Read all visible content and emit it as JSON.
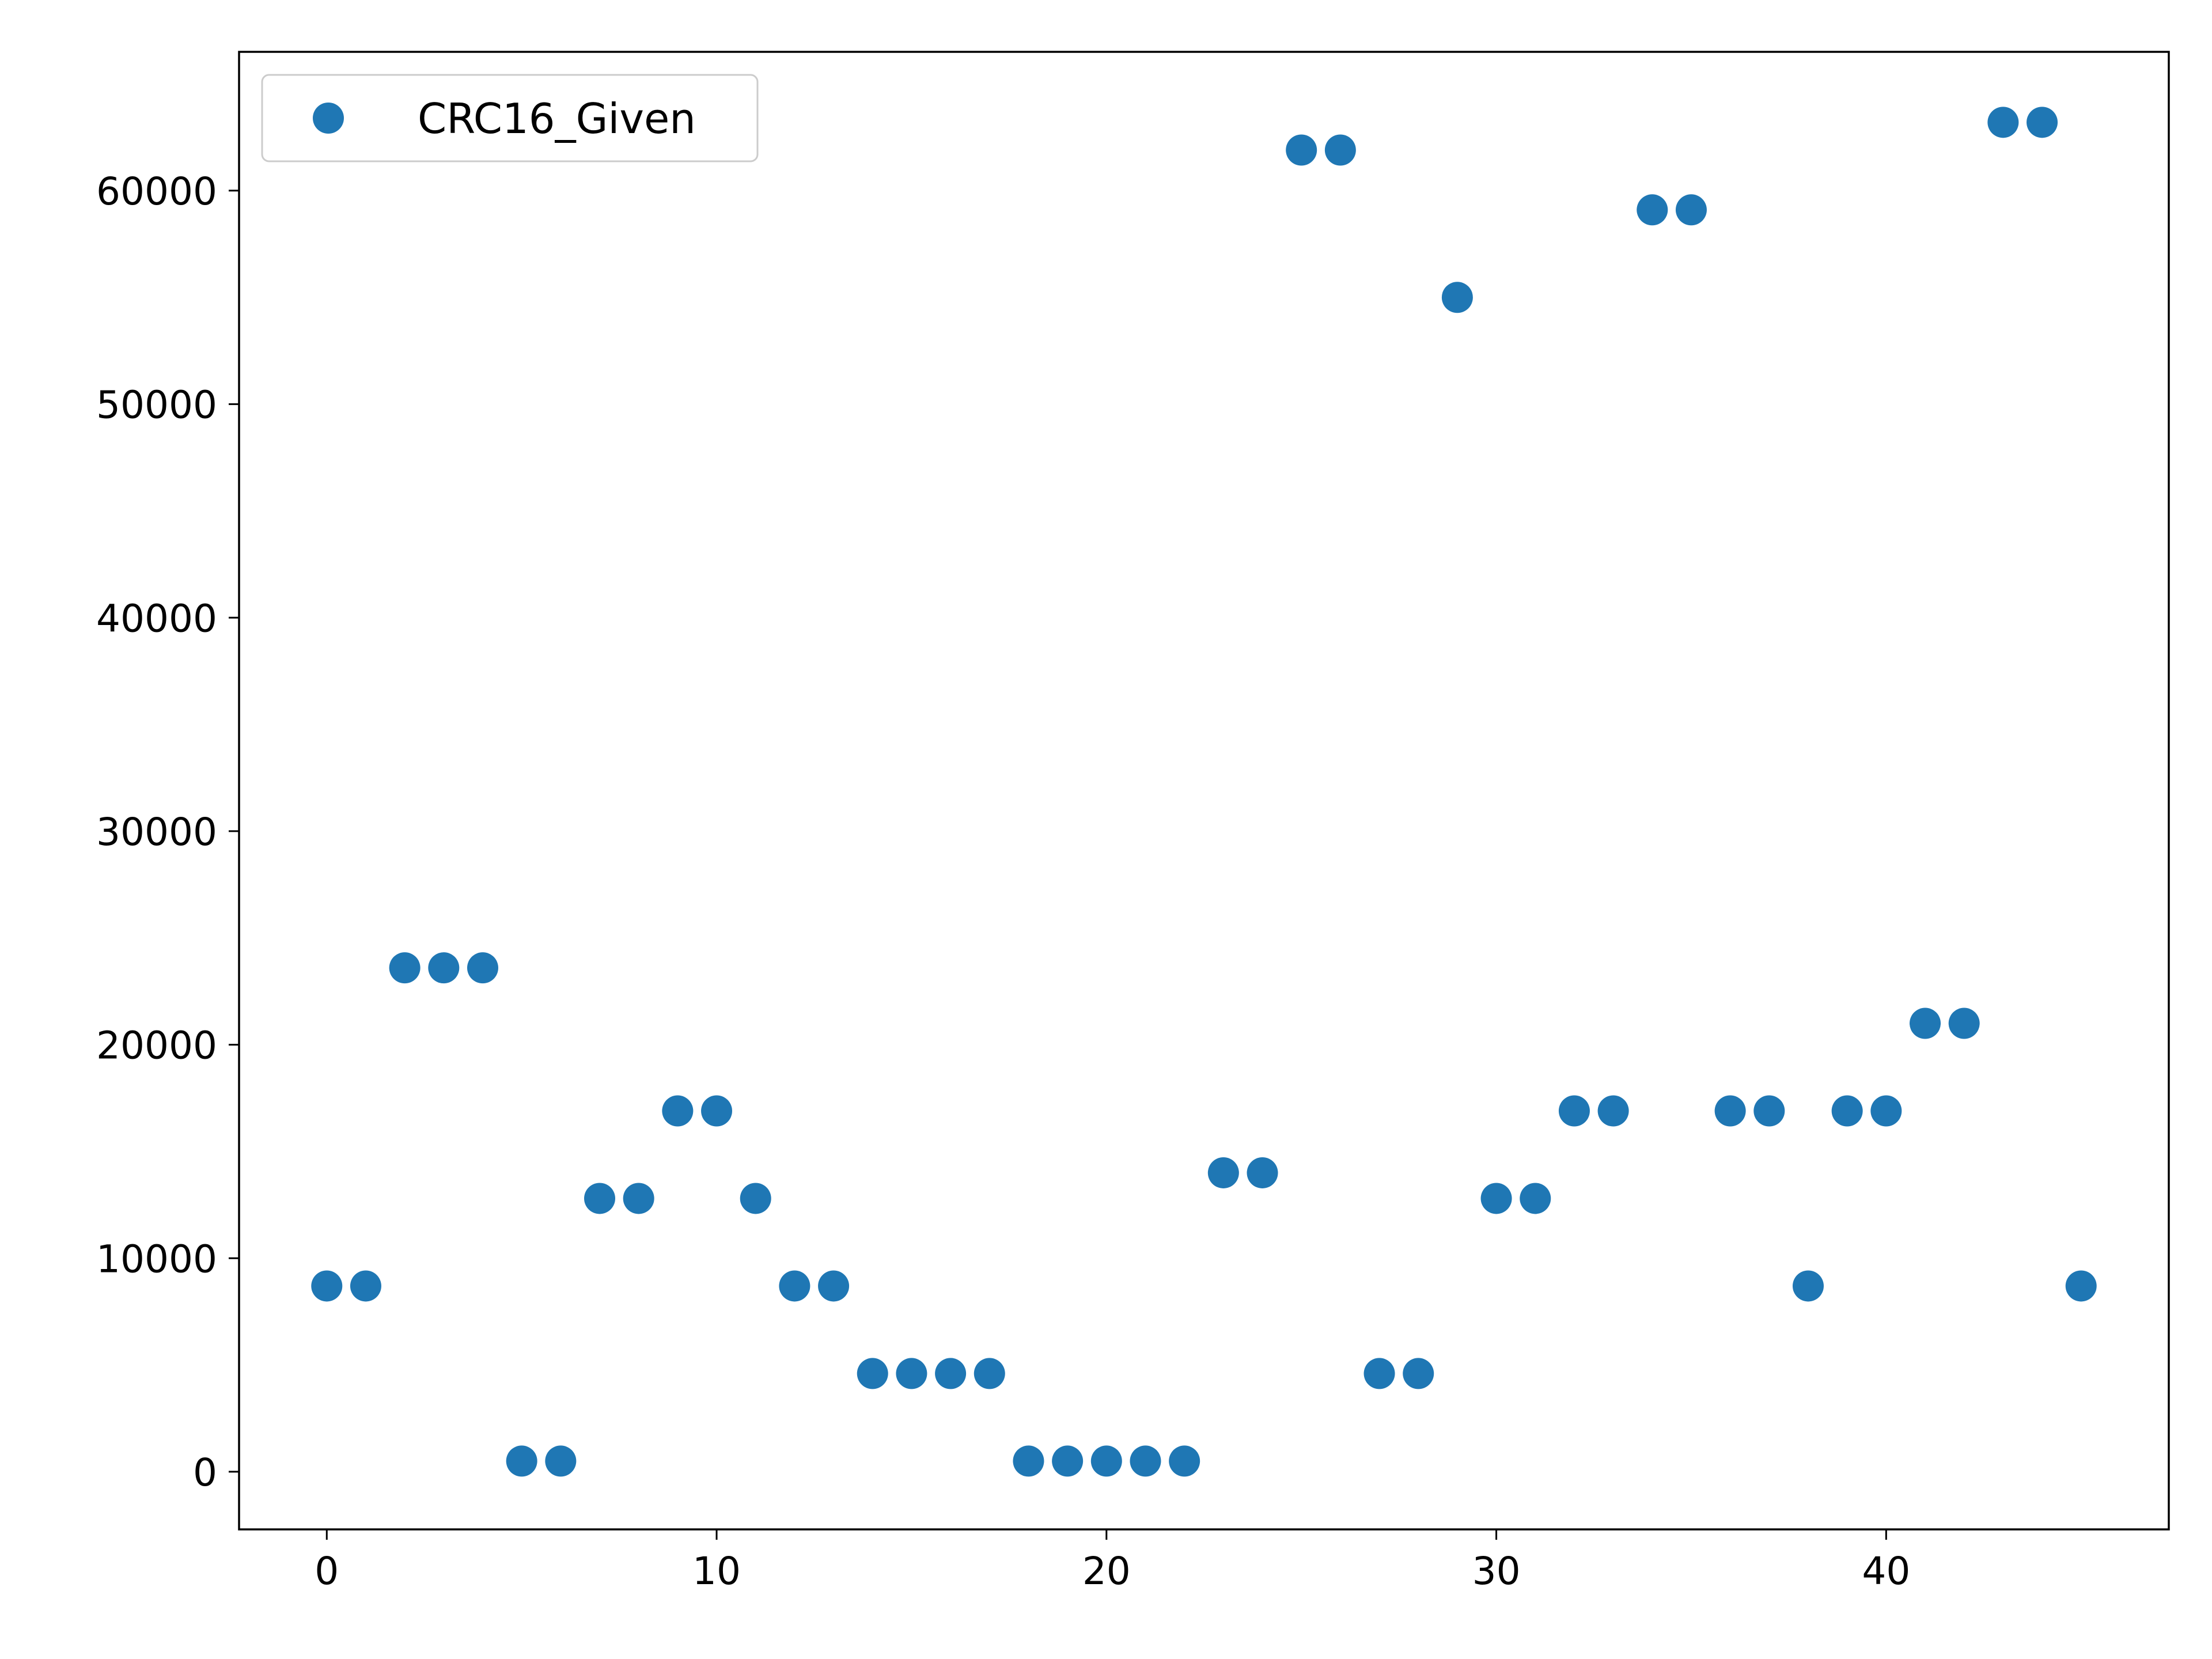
{
  "chart_data": {
    "type": "scatter",
    "title": "",
    "xlabel": "",
    "ylabel": "",
    "xlim": [
      -2.25,
      47.25
    ],
    "ylim": [
      -2700,
      66500
    ],
    "xticks": [
      0,
      10,
      20,
      30,
      40
    ],
    "yticks": [
      0,
      10000,
      20000,
      30000,
      40000,
      50000,
      60000
    ],
    "xtick_labels": [
      "0",
      "10",
      "20",
      "30",
      "40"
    ],
    "ytick_labels": [
      "0",
      "10000",
      "20000",
      "30000",
      "40000",
      "50000",
      "60000"
    ],
    "grid": false,
    "legend": {
      "position": "top-left",
      "entries": [
        "CRC16_Given"
      ]
    },
    "series": [
      {
        "name": "CRC16_Given",
        "color": "#1f77b4",
        "marker": "circle",
        "x": [
          0,
          1,
          2,
          3,
          4,
          5,
          6,
          7,
          8,
          9,
          10,
          11,
          12,
          13,
          14,
          15,
          16,
          17,
          18,
          19,
          20,
          21,
          22,
          23,
          24,
          25,
          26,
          27,
          28,
          29,
          30,
          31,
          32,
          33,
          34,
          35,
          36,
          37,
          38,
          39,
          40,
          41,
          42,
          43,
          44,
          45
        ],
        "y": [
          8700,
          8700,
          23600,
          23600,
          23600,
          500,
          500,
          12800,
          12800,
          16900,
          16900,
          12800,
          8700,
          8700,
          4600,
          4600,
          4600,
          4600,
          500,
          500,
          500,
          500,
          500,
          14000,
          14000,
          61900,
          61900,
          4600,
          4600,
          55000,
          12800,
          12800,
          16900,
          16900,
          59100,
          59100,
          16900,
          16900,
          8700,
          16900,
          16900,
          21000,
          21000,
          63200,
          63200,
          8700
        ]
      }
    ]
  }
}
